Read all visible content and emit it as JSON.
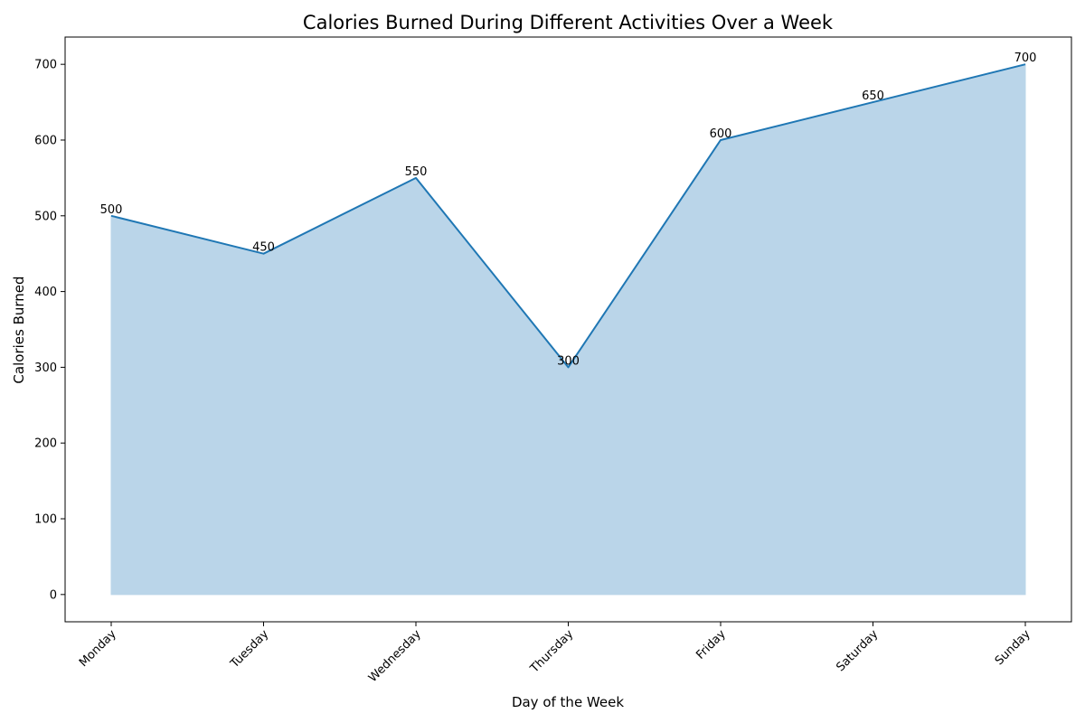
{
  "chart_data": {
    "type": "area",
    "title": "Calories Burned During Different Activities Over a Week",
    "xlabel": "Day of the Week",
    "ylabel": "Calories Burned",
    "categories": [
      "Monday",
      "Tuesday",
      "Wednesday",
      "Thursday",
      "Friday",
      "Saturday",
      "Sunday"
    ],
    "values": [
      500,
      450,
      550,
      300,
      600,
      650,
      700
    ],
    "data_labels": [
      "500",
      "450",
      "550",
      "300",
      "600",
      "650",
      "700"
    ],
    "y_ticks": [
      0,
      100,
      200,
      300,
      400,
      500,
      600,
      700
    ],
    "y_tick_labels": [
      "0",
      "100",
      "200",
      "300",
      "400",
      "500",
      "600",
      "700"
    ],
    "ylim": [
      -36,
      736
    ],
    "grid": false,
    "legend": "none",
    "x_tick_rotation_deg": 45,
    "colors": {
      "line": "#1f77b4",
      "fill": "#bad5e9",
      "axes": "#000000",
      "background": "#ffffff"
    }
  }
}
